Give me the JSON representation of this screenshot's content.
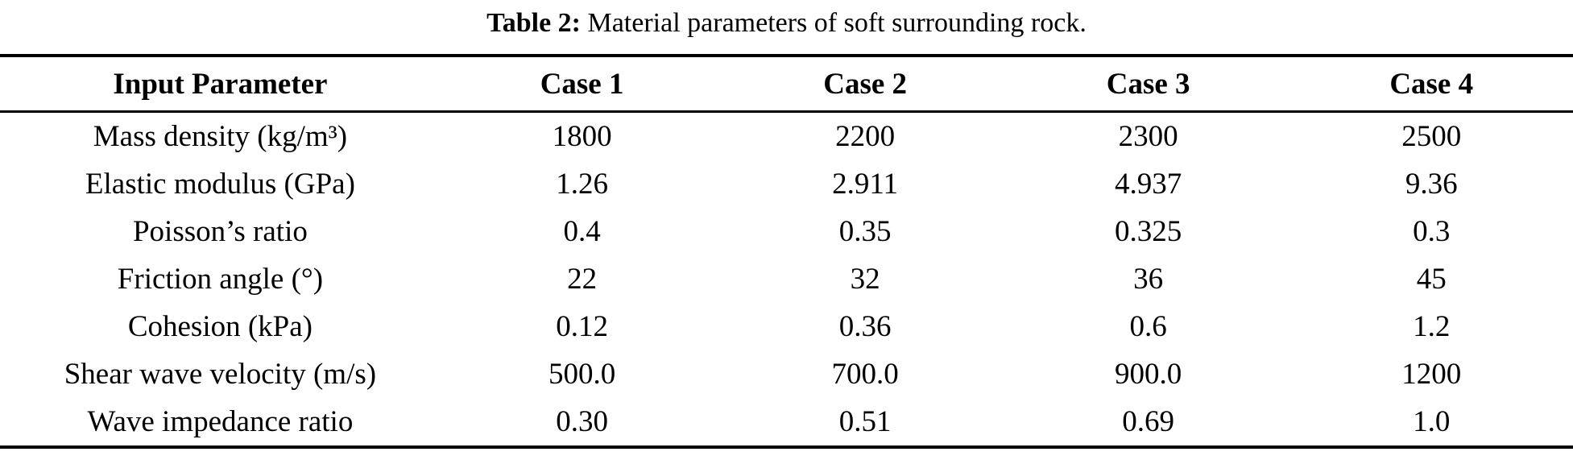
{
  "caption": {
    "label": "Table 2:",
    "text": " Material parameters of soft surrounding rock."
  },
  "table": {
    "headers": [
      "Input Parameter",
      "Case 1",
      "Case 2",
      "Case 3",
      "Case 4"
    ],
    "rows": [
      {
        "parameter": "Mass density (kg/m³)",
        "values": [
          "1800",
          "2200",
          "2300",
          "2500"
        ]
      },
      {
        "parameter": "Elastic modulus (GPa)",
        "values": [
          "1.26",
          "2.911",
          "4.937",
          "9.36"
        ]
      },
      {
        "parameter": "Poisson’s ratio",
        "values": [
          "0.4",
          "0.35",
          "0.325",
          "0.3"
        ]
      },
      {
        "parameter": "Friction angle (°)",
        "values": [
          "22",
          "32",
          "36",
          "45"
        ]
      },
      {
        "parameter": "Cohesion (kPa)",
        "values": [
          "0.12",
          "0.36",
          "0.6",
          "1.2"
        ]
      },
      {
        "parameter": "Shear wave velocity (m/s)",
        "values": [
          "500.0",
          "700.0",
          "900.0",
          "1200"
        ]
      },
      {
        "parameter": "Wave impedance ratio",
        "values": [
          "0.30",
          "0.51",
          "0.69",
          "1.0"
        ]
      }
    ]
  },
  "colors": {
    "text": "#000000",
    "background": "#ffffff",
    "rule": "#000000"
  }
}
